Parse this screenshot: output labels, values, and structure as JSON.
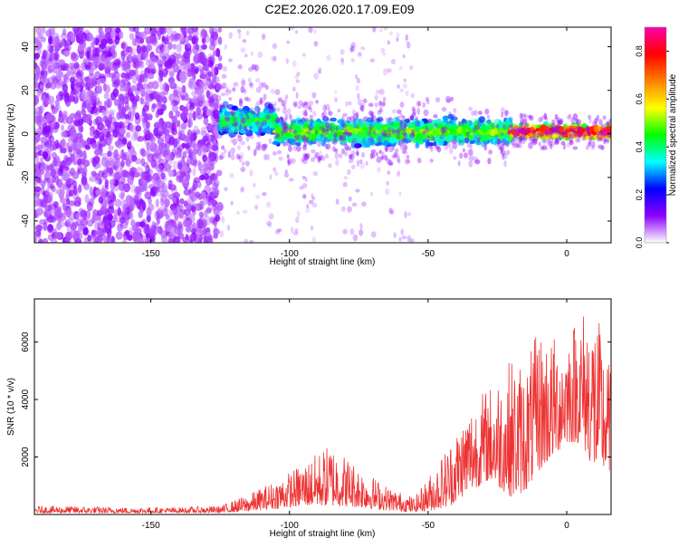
{
  "title": "C2E2.2026.020.17.09.E09",
  "chart_data": [
    {
      "type": "heatmap",
      "title": "C2E2.2026.020.17.09.E09",
      "xlabel": "Height of straight line (km)",
      "ylabel": "Frequency (Hz)",
      "xlim": [
        -192,
        16
      ],
      "ylim": [
        -50,
        49
      ],
      "xticks": [
        -150,
        -100,
        -50,
        0
      ],
      "xtick_labels": [
        "-150",
        "-100",
        "-50",
        "0"
      ],
      "yticks": [
        -40,
        -20,
        0,
        20,
        40
      ],
      "ytick_labels": [
        "-40",
        "-20",
        "0",
        "20",
        "40"
      ],
      "colorbar": {
        "label": "Normalized spectral amplitude",
        "range": [
          0.0,
          0.9
        ],
        "ticks": [
          0.0,
          0.2,
          0.4,
          0.6,
          0.8
        ],
        "tick_labels": [
          "0.0",
          "0.2",
          "0.4",
          "0.6",
          "0.8"
        ],
        "colors": [
          "#ffffff",
          "#8c00ff",
          "#0000ff",
          "#00ffff",
          "#00ff00",
          "#ffff00",
          "#ff8000",
          "#ff0000",
          "#ff00aa"
        ]
      },
      "regions": [
        {
          "name": "noise",
          "x_range": [
            -192,
            -125
          ],
          "f_range": [
            -50,
            49
          ],
          "amplitude": 0.1
        },
        {
          "name": "band-onset",
          "x_range": [
            -125,
            -105
          ],
          "f_center": 6,
          "f_halfwidth": 7,
          "amplitude": 0.3
        },
        {
          "name": "band-middle",
          "x_range": [
            -105,
            -20
          ],
          "f_center": 1,
          "f_halfwidth": 6,
          "amplitude": 0.35
        },
        {
          "name": "band-end",
          "x_range": [
            -20,
            16
          ],
          "f_center": 1,
          "f_halfwidth": 3,
          "amplitude": 0.6
        }
      ]
    },
    {
      "type": "line",
      "xlabel": "Height of straight line (km)",
      "ylabel": "SNR (10 * v/v)",
      "xlim": [
        -192,
        16
      ],
      "ylim": [
        0,
        7500
      ],
      "xticks": [
        -150,
        -100,
        -50,
        0
      ],
      "xtick_labels": [
        "-150",
        "-100",
        "-50",
        "0"
      ],
      "yticks": [
        2000,
        4000,
        6000
      ],
      "ytick_labels": [
        "2000",
        "4000",
        "6000"
      ],
      "color": "#ee3333",
      "envelope": {
        "x": [
          -192,
          -180,
          -160,
          -140,
          -125,
          -115,
          -105,
          -95,
          -85,
          -75,
          -65,
          -55,
          -48,
          -42,
          -35,
          -28,
          -20,
          -15,
          -10,
          -5,
          0,
          5,
          10,
          16
        ],
        "baseline": [
          50,
          50,
          50,
          60,
          60,
          100,
          200,
          300,
          300,
          250,
          150,
          80,
          150,
          300,
          800,
          1200,
          600,
          800,
          1500,
          2000,
          2500,
          2500,
          1500,
          1500
        ],
        "peak": [
          300,
          300,
          250,
          250,
          300,
          700,
          1200,
          1800,
          2500,
          1700,
          1000,
          600,
          1600,
          2600,
          3900,
          4500,
          5500,
          5300,
          6500,
          6200,
          6500,
          7200,
          7400,
          5000
        ]
      }
    }
  ]
}
